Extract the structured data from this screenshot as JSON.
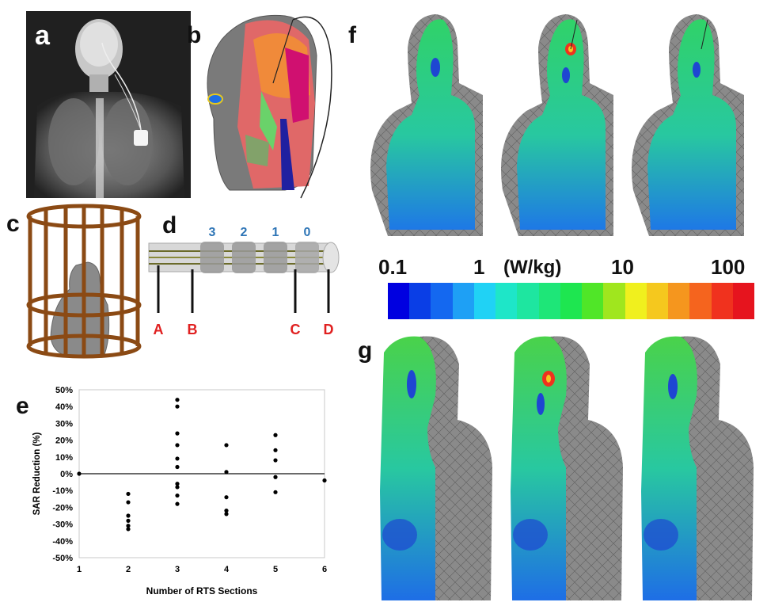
{
  "panels": {
    "a": {
      "letter": "a"
    },
    "b": {
      "letter": "b"
    },
    "c": {
      "letter": "c"
    },
    "d": {
      "letter": "d",
      "electrode_labels": [
        "3",
        "2",
        "1",
        "0"
      ],
      "point_labels": [
        "A",
        "B",
        "C",
        "D"
      ],
      "electrode_color": "#2e75b6",
      "point_color": "#e02020"
    },
    "e": {
      "letter": "e"
    },
    "f": {
      "letter": "f"
    },
    "g": {
      "letter": "g"
    }
  },
  "colorbar": {
    "tick_labels": [
      "0.1",
      "1",
      "10",
      "100"
    ],
    "unit": "(W/kg)",
    "colors": [
      "#0000e0",
      "#0a3ee6",
      "#1468f0",
      "#1ea0f5",
      "#20d2f5",
      "#1ee6c8",
      "#1ee6a0",
      "#1ee678",
      "#1ee650",
      "#50e628",
      "#a0e61e",
      "#f0f01e",
      "#f5c81e",
      "#f5961e",
      "#f5641e",
      "#f0321e",
      "#e6141e"
    ]
  },
  "chart_data": {
    "type": "scatter",
    "xlabel": "Number of RTS Sections",
    "ylabel": "SAR Reduction (%)",
    "xlim": [
      1,
      6
    ],
    "ylim": [
      -50,
      50
    ],
    "xticks": [
      "1",
      "2",
      "3",
      "4",
      "5",
      "6"
    ],
    "yticks": [
      "50%",
      "40%",
      "30%",
      "20%",
      "10%",
      "0%",
      "-10%",
      "-20%",
      "-30%",
      "-40%",
      "-50%"
    ],
    "grid": false,
    "points": [
      {
        "x": 1,
        "y": 0
      },
      {
        "x": 2,
        "y": -12
      },
      {
        "x": 2,
        "y": -17
      },
      {
        "x": 2,
        "y": -25
      },
      {
        "x": 2,
        "y": -28
      },
      {
        "x": 2,
        "y": -31
      },
      {
        "x": 2,
        "y": -33
      },
      {
        "x": 3,
        "y": 44
      },
      {
        "x": 3,
        "y": 40
      },
      {
        "x": 3,
        "y": 24
      },
      {
        "x": 3,
        "y": 17
      },
      {
        "x": 3,
        "y": 9
      },
      {
        "x": 3,
        "y": 4
      },
      {
        "x": 3,
        "y": -6
      },
      {
        "x": 3,
        "y": -8
      },
      {
        "x": 3,
        "y": -13
      },
      {
        "x": 3,
        "y": -18
      },
      {
        "x": 4,
        "y": 17
      },
      {
        "x": 4,
        "y": 1
      },
      {
        "x": 4,
        "y": -14
      },
      {
        "x": 4,
        "y": -22
      },
      {
        "x": 4,
        "y": -24
      },
      {
        "x": 5,
        "y": 23
      },
      {
        "x": 5,
        "y": 14
      },
      {
        "x": 5,
        "y": 8
      },
      {
        "x": 5,
        "y": -2
      },
      {
        "x": 5,
        "y": -11
      },
      {
        "x": 6,
        "y": -4
      }
    ]
  }
}
